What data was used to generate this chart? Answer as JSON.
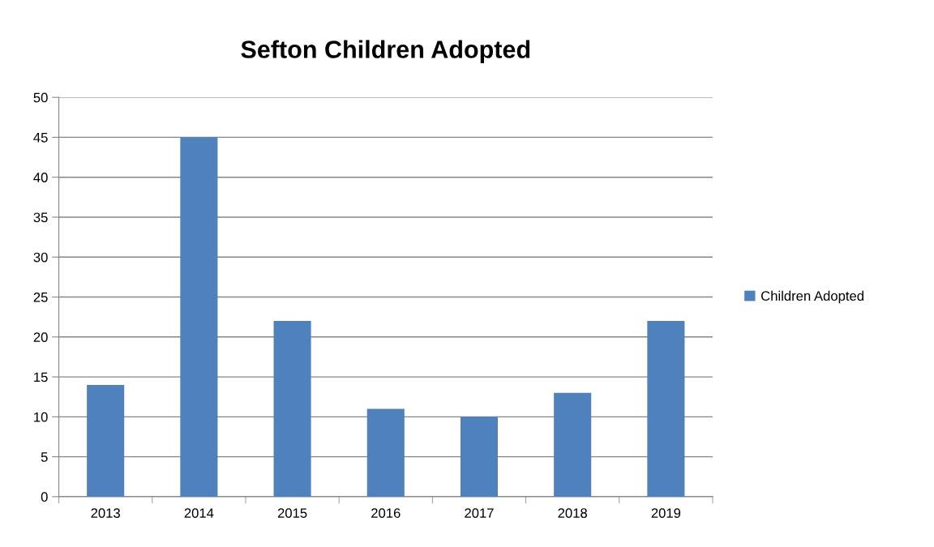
{
  "chart_data": {
    "type": "bar",
    "title": "Sefton Children Adopted",
    "categories": [
      "2013",
      "2014",
      "2015",
      "2016",
      "2017",
      "2018",
      "2019"
    ],
    "series": [
      {
        "name": "Children Adopted",
        "color": "#4f81bd",
        "values": [
          14,
          45,
          22,
          11,
          10,
          13,
          22
        ]
      }
    ],
    "ylim": [
      0,
      50
    ],
    "yticks": [
      0,
      5,
      10,
      15,
      20,
      25,
      30,
      35,
      40,
      45,
      50
    ],
    "grid": "y",
    "legend": "right"
  }
}
